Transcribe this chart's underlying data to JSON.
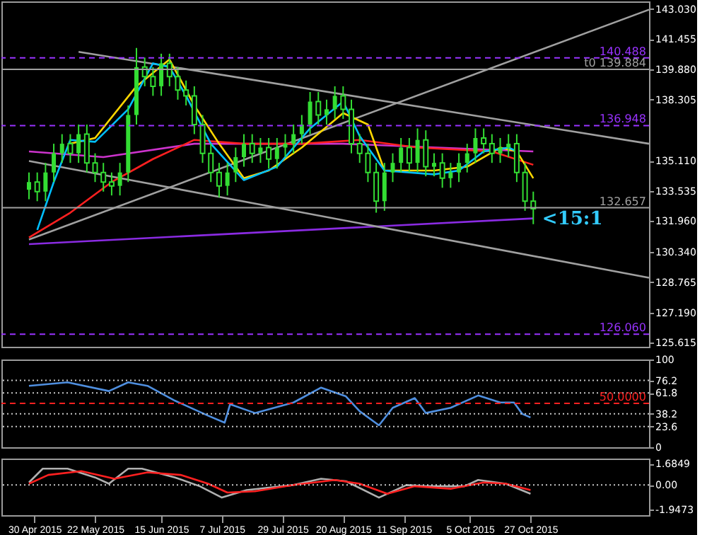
{
  "chart_data": [
    {
      "type": "candlestick",
      "color": "#33dd33",
      "tick_labels": "y",
      "x": [
        "2015-04-28",
        "2015-05-01",
        "2015-05-04",
        "2015-05-07",
        "2015-05-10",
        "2015-05-13",
        "2015-05-16",
        "2015-05-19",
        "2015-05-22",
        "2015-05-25",
        "2015-05-28",
        "2015-05-31",
        "2015-06-03",
        "2015-06-06",
        "2015-06-09",
        "2015-06-12",
        "2015-06-15",
        "2015-06-18",
        "2015-06-21",
        "2015-06-24",
        "2015-06-27",
        "2015-06-30",
        "2015-07-03",
        "2015-07-06",
        "2015-07-09",
        "2015-07-12",
        "2015-07-15",
        "2015-07-18",
        "2015-07-21",
        "2015-07-24",
        "2015-07-27",
        "2015-07-30",
        "2015-08-02",
        "2015-08-05",
        "2015-08-08",
        "2015-08-11",
        "2015-08-14",
        "2015-08-17",
        "2015-08-20",
        "2015-08-23",
        "2015-08-26",
        "2015-08-29",
        "2015-09-01",
        "2015-09-04",
        "2015-09-07",
        "2015-09-10",
        "2015-09-13",
        "2015-09-16",
        "2015-09-19",
        "2015-09-22",
        "2015-09-25",
        "2015-09-28",
        "2015-10-01",
        "2015-10-04",
        "2015-10-07",
        "2015-10-10",
        "2015-10-13",
        "2015-10-16",
        "2015-10-19",
        "2015-10-22",
        "2015-10-25",
        "2015-10-28"
      ],
      "ohlc": [
        [
          133.6,
          134.5,
          133.1,
          134.0
        ],
        [
          134.0,
          134.5,
          133.0,
          133.5
        ],
        [
          133.5,
          135.0,
          133.0,
          134.5
        ],
        [
          134.5,
          136.0,
          134.0,
          135.5
        ],
        [
          135.5,
          136.5,
          135.0,
          136.0
        ],
        [
          136.0,
          136.5,
          135.0,
          135.5
        ],
        [
          135.5,
          137.0,
          135.0,
          136.5
        ],
        [
          136.5,
          137.0,
          134.5,
          135.0
        ],
        [
          135.0,
          135.5,
          134.0,
          134.5
        ],
        [
          134.5,
          135.0,
          133.5,
          134.0
        ],
        [
          134.0,
          134.5,
          133.3,
          133.8
        ],
        [
          133.8,
          135.0,
          133.3,
          134.5
        ],
        [
          134.5,
          138.0,
          134.0,
          137.5
        ],
        [
          137.5,
          141.0,
          137.0,
          140.0
        ],
        [
          140.0,
          140.5,
          139.0,
          139.5
        ],
        [
          139.5,
          140.0,
          138.5,
          139.0
        ],
        [
          139.0,
          140.7,
          138.5,
          140.2
        ],
        [
          140.2,
          140.7,
          139.0,
          139.5
        ],
        [
          139.5,
          140.0,
          138.3,
          138.8
        ],
        [
          138.8,
          139.3,
          138.0,
          138.5
        ],
        [
          138.5,
          139.0,
          136.5,
          137.0
        ],
        [
          137.0,
          137.5,
          135.0,
          135.5
        ],
        [
          135.5,
          136.0,
          134.0,
          134.5
        ],
        [
          134.5,
          135.0,
          133.2,
          133.8
        ],
        [
          133.8,
          135.0,
          133.3,
          134.5
        ],
        [
          134.5,
          135.8,
          134.0,
          135.3
        ],
        [
          135.3,
          136.5,
          134.8,
          136.0
        ],
        [
          136.0,
          136.5,
          135.0,
          135.5
        ],
        [
          135.5,
          136.3,
          135.0,
          135.8
        ],
        [
          135.8,
          136.3,
          134.7,
          135.2
        ],
        [
          135.2,
          136.3,
          134.7,
          135.8
        ],
        [
          135.8,
          136.5,
          135.3,
          136.0
        ],
        [
          136.0,
          137.0,
          135.5,
          136.5
        ],
        [
          136.5,
          137.5,
          136.0,
          137.0
        ],
        [
          137.0,
          138.7,
          136.5,
          138.2
        ],
        [
          138.2,
          138.7,
          137.0,
          137.5
        ],
        [
          137.5,
          138.3,
          137.0,
          137.8
        ],
        [
          137.8,
          139.0,
          137.3,
          138.5
        ],
        [
          138.5,
          139.0,
          137.3,
          137.8
        ],
        [
          137.8,
          138.3,
          135.5,
          136.0
        ],
        [
          136.0,
          136.5,
          135.0,
          135.5
        ],
        [
          135.5,
          136.0,
          134.0,
          134.5
        ],
        [
          134.5,
          135.0,
          132.4,
          133.0
        ],
        [
          133.0,
          135.0,
          132.5,
          134.5
        ],
        [
          134.5,
          135.5,
          134.0,
          135.0
        ],
        [
          135.0,
          136.3,
          134.5,
          135.8
        ],
        [
          135.8,
          136.3,
          134.5,
          135.0
        ],
        [
          135.0,
          136.8,
          134.5,
          136.2
        ],
        [
          136.2,
          136.7,
          134.3,
          134.8
        ],
        [
          134.8,
          135.5,
          134.3,
          135.0
        ],
        [
          135.0,
          135.5,
          133.7,
          134.2
        ],
        [
          134.2,
          135.0,
          133.7,
          134.5
        ],
        [
          134.5,
          135.5,
          134.0,
          135.0
        ],
        [
          135.0,
          136.0,
          134.5,
          135.5
        ],
        [
          135.5,
          136.8,
          135.0,
          136.3
        ],
        [
          136.3,
          136.8,
          135.5,
          136.0
        ],
        [
          136.0,
          136.5,
          135.0,
          135.5
        ],
        [
          135.5,
          136.3,
          135.0,
          135.8
        ],
        [
          135.8,
          136.5,
          135.3,
          136.0
        ],
        [
          136.0,
          136.5,
          134.0,
          134.5
        ],
        [
          134.5,
          135.0,
          132.5,
          133.0
        ],
        [
          133.0,
          133.5,
          131.8,
          132.6
        ]
      ],
      "series": [
        {
          "type": "line",
          "color": "#8a2be2",
          "x": [
            "2015-04-28",
            "2015-10-28"
          ],
          "values": [
            130.76,
            132.1
          ]
        },
        {
          "type": "line",
          "color": "#a0a0a0",
          "x": [
            "2015-05-16",
            "2015-12-09"
          ],
          "values": [
            140.8,
            136.0
          ]
        },
        {
          "type": "line",
          "color": "#a0a0a0",
          "x": [
            "2015-04-28",
            "2015-12-09"
          ],
          "values": [
            135.1,
            129.0
          ]
        },
        {
          "type": "line",
          "color": "#a0a0a0",
          "x": [
            "2015-04-28",
            "2015-12-09"
          ],
          "values": [
            131.0,
            143.0
          ]
        },
        {
          "type": "line",
          "color": "#cc33cc",
          "x": [
            "2015-04-28",
            "2015-05-25",
            "2015-06-27",
            "2015-08-20",
            "2015-10-28"
          ],
          "values": [
            135.6,
            135.3,
            136.0,
            136.0,
            135.6
          ]
        },
        {
          "type": "line",
          "color": "#ff2020",
          "x": [
            "2015-04-28",
            "2015-05-13",
            "2015-05-28",
            "2015-06-12",
            "2015-06-27",
            "2015-07-15",
            "2015-08-05",
            "2015-08-26",
            "2015-09-16",
            "2015-10-13",
            "2015-10-28"
          ],
          "values": [
            131.1,
            132.4,
            134.0,
            135.2,
            136.2,
            136.0,
            136.0,
            136.2,
            135.8,
            135.6,
            134.9
          ]
        },
        {
          "type": "line",
          "color": "#ffd700",
          "x": [
            "2015-05-13",
            "2015-05-22",
            "2015-06-06",
            "2015-06-18",
            "2015-06-27",
            "2015-07-06",
            "2015-07-15",
            "2015-07-24",
            "2015-08-05",
            "2015-08-20",
            "2015-08-29",
            "2015-09-04",
            "2015-09-22",
            "2015-10-04",
            "2015-10-16",
            "2015-10-22",
            "2015-10-28"
          ],
          "values": [
            136.0,
            136.3,
            139.0,
            140.4,
            138.0,
            136.0,
            134.2,
            134.6,
            135.8,
            137.6,
            137.0,
            134.6,
            134.6,
            134.8,
            135.8,
            135.6,
            134.2
          ]
        },
        {
          "type": "line",
          "color": "#00bfff",
          "x": [
            "2015-05-01",
            "2015-05-07",
            "2015-05-13",
            "2015-05-22",
            "2015-06-03",
            "2015-06-12",
            "2015-06-18",
            "2015-06-24",
            "2015-07-03",
            "2015-07-15",
            "2015-07-27",
            "2015-08-08",
            "2015-08-20",
            "2015-08-26",
            "2015-09-04",
            "2015-09-22",
            "2015-10-01",
            "2015-10-10",
            "2015-10-19",
            "2015-10-22"
          ],
          "values": [
            131.5,
            134.0,
            136.2,
            136.1,
            137.8,
            140.2,
            140.0,
            138.5,
            136.0,
            134.1,
            134.8,
            136.8,
            138.2,
            136.4,
            134.6,
            134.4,
            134.6,
            135.6,
            135.8,
            135.6
          ]
        }
      ],
      "xlim": [
        "2015-04-18",
        "2015-12-09"
      ],
      "ylim": [
        125.4,
        143.43
      ],
      "yticks": [
        {
          "value": 143.03,
          "label": "143.030"
        },
        141.455,
        {
          "value": 139.88,
          "label": "139.880"
        },
        138.305,
        {
          "value": 135.11,
          "label": "135.110"
        },
        133.535,
        {
          "value": 131.96,
          "label": "131.960"
        },
        {
          "value": 130.34,
          "label": "130.340"
        },
        128.765,
        {
          "value": 127.19,
          "label": "127.190"
        },
        125.615
      ],
      "ref_lines": [
        {
          "axis": "y",
          "value": 140.488,
          "label": "140.488",
          "color": "#9933ff",
          "line_style": "dashed"
        },
        {
          "axis": "y",
          "value": 139.884,
          "label": "t0 139.884",
          "color": "#a0a0a0",
          "line_style": "solid"
        },
        {
          "axis": "y",
          "value": 136.948,
          "label": "136.948",
          "color": "#9933ff",
          "line_style": "dashed"
        },
        {
          "axis": "y",
          "value": 132.657,
          "label": "132.657",
          "color": "#a0a0a0",
          "line_style": "solid"
        },
        {
          "axis": "y",
          "value": 126.06,
          "label": "126.060",
          "color": "#9933ff",
          "line_style": "dashed"
        }
      ],
      "annotations": [
        "<15:1"
      ]
    },
    {
      "type": "line",
      "tick_labels": "y",
      "series": [
        {
          "color": "#4f8fe0",
          "x": [
            "2015-04-28",
            "2015-05-12",
            "2015-05-27",
            "2015-06-03",
            "2015-06-10",
            "2015-06-20",
            "2015-07-02",
            "2015-07-08",
            "2015-07-10",
            "2015-07-19",
            "2015-08-02",
            "2015-08-12",
            "2015-08-21",
            "2015-08-26",
            "2015-09-02",
            "2015-09-07",
            "2015-09-15",
            "2015-09-19",
            "2015-09-28",
            "2015-10-08",
            "2015-10-16",
            "2015-10-21",
            "2015-10-24",
            "2015-10-27"
          ],
          "values": [
            70,
            74,
            64,
            74,
            70,
            53,
            36,
            28,
            49,
            39,
            51,
            68,
            58,
            41,
            25,
            45,
            56,
            39,
            45,
            59,
            51,
            51,
            38,
            34
          ]
        }
      ],
      "xlim": [
        "2015-04-18",
        "2015-12-09"
      ],
      "ylim": [
        0,
        100
      ],
      "yticks": [
        100,
        76.2,
        61.8,
        38.2,
        23.6,
        0
      ],
      "ref_lines": [
        {
          "axis": "y",
          "value": 76.2,
          "color": "#c8c8c8",
          "line_style": "dotted"
        },
        {
          "axis": "y",
          "value": 61.8,
          "color": "#c8c8c8",
          "line_style": "dotted"
        },
        {
          "axis": "y",
          "value": 50,
          "label": "50.0000",
          "color": "#ff2020",
          "line_style": "dashed"
        },
        {
          "axis": "y",
          "value": 38.2,
          "color": "#c8c8c8",
          "line_style": "dotted"
        },
        {
          "axis": "y",
          "value": 23.6,
          "color": "#c8c8c8",
          "line_style": "dotted"
        }
      ]
    },
    {
      "type": "line",
      "series": [
        {
          "color": "#b0b0b0",
          "x": [
            "2015-04-28",
            "2015-05-03",
            "2015-05-12",
            "2015-05-22",
            "2015-05-27",
            "2015-06-03",
            "2015-06-08",
            "2015-06-20",
            "2015-06-29",
            "2015-07-07",
            "2015-07-16",
            "2015-08-02",
            "2015-08-12",
            "2015-08-21",
            "2015-09-02",
            "2015-09-12",
            "2015-09-19",
            "2015-10-03",
            "2015-10-08",
            "2015-10-18",
            "2015-10-27"
          ],
          "values": [
            0.2,
            1.3,
            1.3,
            0.6,
            0.1,
            1.3,
            1.3,
            0.6,
            -0.1,
            -1.0,
            -0.4,
            0,
            0.5,
            0.3,
            -1.0,
            0,
            -0.1,
            -0.1,
            0.4,
            0.1,
            -0.7
          ]
        },
        {
          "color": "#ff2020",
          "x": [
            "2015-04-28",
            "2015-05-05",
            "2015-05-17",
            "2015-05-29",
            "2015-06-10",
            "2015-06-22",
            "2015-07-02",
            "2015-07-09",
            "2015-07-19",
            "2015-08-02",
            "2015-08-17",
            "2015-08-26",
            "2015-09-05",
            "2015-09-15",
            "2015-09-28",
            "2015-10-10",
            "2015-10-18",
            "2015-10-27"
          ],
          "values": [
            0.1,
            0.8,
            1.1,
            0.5,
            1.0,
            0.8,
            0.1,
            -0.6,
            -0.5,
            0,
            0.4,
            0.1,
            -0.7,
            -0.1,
            -0.3,
            0.2,
            0.1,
            -0.4
          ]
        }
      ],
      "xlim": [
        "2015-04-18",
        "2015-12-09"
      ],
      "xticks": [
        {
          "value": "2015-04-30",
          "label": "30 Apr 2015"
        },
        {
          "value": "2015-05-22",
          "label": "22 May 2015"
        },
        {
          "value": "2015-06-15",
          "label": "15 Jun 2015"
        },
        {
          "value": "2015-07-07",
          "label": "7 Jul 2015"
        },
        {
          "value": "2015-07-29",
          "label": "29 Jul 2015"
        },
        {
          "value": "2015-08-20",
          "label": "20 Aug 2015"
        },
        {
          "value": "2015-09-11",
          "label": "11 Sep 2015"
        },
        {
          "value": "2015-10-05",
          "label": "5 Oct 2015"
        },
        {
          "value": "2015-10-27",
          "label": "27 Oct 2015"
        }
      ],
      "ylim": [
        -2.4,
        2.1
      ],
      "yticks": [
        1.6849,
        {
          "value": 0,
          "label": "0.00"
        },
        -1.9473
      ],
      "ref_lines": [
        {
          "axis": "y",
          "value": 0,
          "color": "#c8c8c8",
          "line_style": "dotted"
        }
      ]
    }
  ]
}
